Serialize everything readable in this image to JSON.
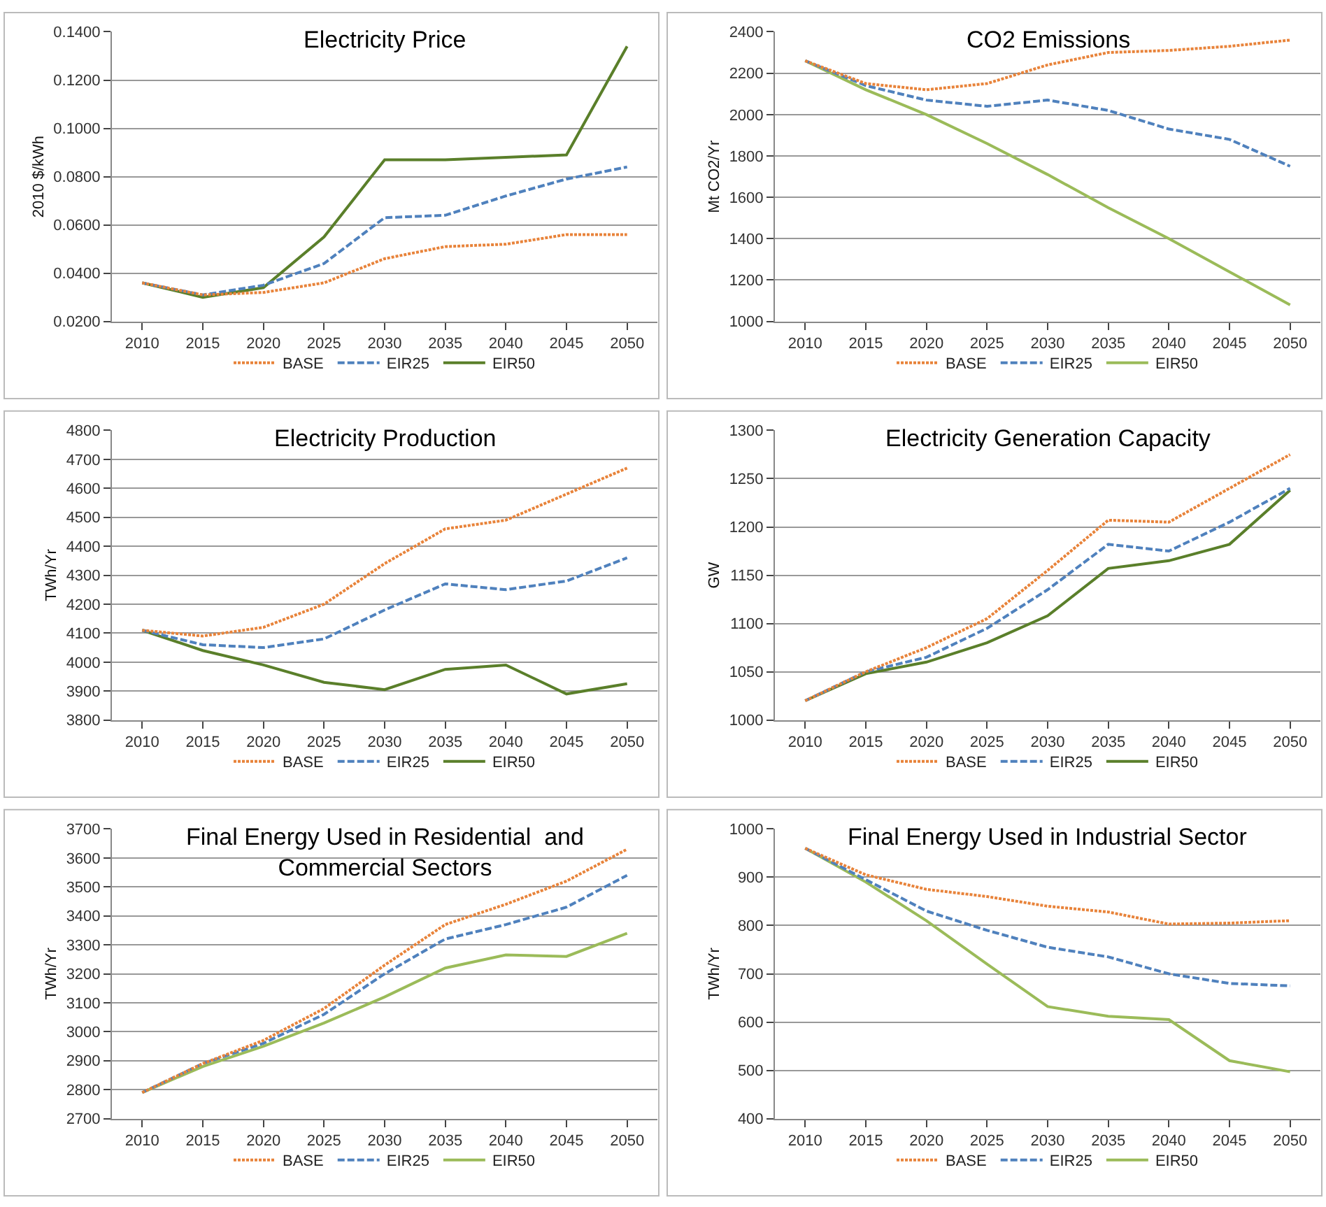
{
  "chart_data": [
    {
      "type": "line",
      "title": "Electricity Price",
      "ylabel": "2010 $/kWh",
      "categories": [
        "2010",
        "2015",
        "2020",
        "2025",
        "2030",
        "2035",
        "2040",
        "2045",
        "2050"
      ],
      "ylim": [
        0.02,
        0.14
      ],
      "yticks": [
        {
          "value": 0.02,
          "label": "0.0200"
        },
        {
          "value": 0.04,
          "label": "0.0400"
        },
        {
          "value": 0.06,
          "label": "0.0600"
        },
        {
          "value": 0.08,
          "label": "0.0800"
        },
        {
          "value": 0.1,
          "label": "0.1000"
        },
        {
          "value": 0.12,
          "label": "0.1200"
        },
        {
          "value": 0.14,
          "label": "0.1400"
        }
      ],
      "grid": "y",
      "legend": "bottom",
      "marker": "none",
      "series": [
        {
          "name": "BASE",
          "color": "#e8833a",
          "line_style": "dotted",
          "values": [
            0.036,
            0.031,
            0.032,
            0.036,
            0.046,
            0.051,
            0.052,
            0.056,
            0.056
          ]
        },
        {
          "name": "EIR25",
          "color": "#4f81bd",
          "line_style": "dashed",
          "values": [
            0.036,
            0.031,
            0.035,
            0.044,
            0.063,
            0.064,
            0.072,
            0.079,
            0.084
          ]
        },
        {
          "name": "EIR50",
          "color": "#5a7f2a",
          "line_style": "solid",
          "values": [
            0.036,
            0.03,
            0.034,
            0.055,
            0.087,
            0.087,
            0.088,
            0.089,
            0.134
          ]
        }
      ]
    },
    {
      "type": "line",
      "title": "CO2 Emissions",
      "ylabel": "Mt CO2/Yr",
      "categories": [
        "2010",
        "2015",
        "2020",
        "2025",
        "2030",
        "2035",
        "2040",
        "2045",
        "2050"
      ],
      "ylim": [
        1000,
        2400
      ],
      "yticks": [
        1000,
        1200,
        1400,
        1600,
        1800,
        2000,
        2200,
        2400
      ],
      "grid": "y",
      "legend": "bottom",
      "marker": "none",
      "series": [
        {
          "name": "BASE",
          "color": "#e8833a",
          "line_style": "dotted",
          "values": [
            2260,
            2150,
            2120,
            2150,
            2240,
            2300,
            2310,
            2330,
            2360
          ]
        },
        {
          "name": "EIR25",
          "color": "#4f81bd",
          "line_style": "dashed",
          "values": [
            2260,
            2140,
            2070,
            2040,
            2070,
            2020,
            1930,
            1880,
            1750
          ]
        },
        {
          "name": "EIR50",
          "color": "#9bbb59",
          "line_style": "solid",
          "values": [
            2260,
            2120,
            2000,
            1860,
            1710,
            1550,
            1400,
            1240,
            1080
          ]
        }
      ]
    },
    {
      "type": "line",
      "title": "Electricity Production",
      "ylabel": "TWh/Yr",
      "categories": [
        "2010",
        "2015",
        "2020",
        "2025",
        "2030",
        "2035",
        "2040",
        "2045",
        "2050"
      ],
      "ylim": [
        3800,
        4800
      ],
      "yticks": [
        3800,
        3900,
        4000,
        4100,
        4200,
        4300,
        4400,
        4500,
        4600,
        4700,
        4800
      ],
      "grid": "y",
      "legend": "bottom",
      "marker": "none",
      "series": [
        {
          "name": "BASE",
          "color": "#e8833a",
          "line_style": "dotted",
          "values": [
            4110,
            4090,
            4120,
            4200,
            4340,
            4460,
            4490,
            4580,
            4670
          ]
        },
        {
          "name": "EIR25",
          "color": "#4f81bd",
          "line_style": "dashed",
          "values": [
            4110,
            4060,
            4050,
            4080,
            4180,
            4270,
            4250,
            4280,
            4360
          ]
        },
        {
          "name": "EIR50",
          "color": "#5a7f2a",
          "line_style": "solid",
          "values": [
            4110,
            4040,
            3990,
            3930,
            3905,
            3975,
            3990,
            3890,
            3925
          ]
        }
      ]
    },
    {
      "type": "line",
      "title": "Electricity Generation Capacity",
      "ylabel": "GW",
      "categories": [
        "2010",
        "2015",
        "2020",
        "2025",
        "2030",
        "2035",
        "2040",
        "2045",
        "2050"
      ],
      "ylim": [
        1000,
        1300
      ],
      "yticks": [
        1000,
        1050,
        1100,
        1150,
        1200,
        1250,
        1300
      ],
      "grid": "y",
      "legend": "bottom",
      "marker": "none",
      "series": [
        {
          "name": "BASE",
          "color": "#e8833a",
          "line_style": "dotted",
          "values": [
            1020,
            1050,
            1075,
            1105,
            1155,
            1207,
            1205,
            1240,
            1275
          ]
        },
        {
          "name": "EIR25",
          "color": "#4f81bd",
          "line_style": "dashed",
          "values": [
            1020,
            1050,
            1065,
            1095,
            1135,
            1182,
            1175,
            1205,
            1240
          ]
        },
        {
          "name": "EIR50",
          "color": "#5a7f2a",
          "line_style": "solid",
          "values": [
            1020,
            1048,
            1060,
            1080,
            1108,
            1157,
            1165,
            1182,
            1238
          ]
        }
      ]
    },
    {
      "type": "line",
      "title": "Final Energy Used in Residential  and\nCommercial Sectors",
      "ylabel": "TWh/Yr",
      "categories": [
        "2010",
        "2015",
        "2020",
        "2025",
        "2030",
        "2035",
        "2040",
        "2045",
        "2050"
      ],
      "ylim": [
        2700,
        3700
      ],
      "yticks": [
        2700,
        2800,
        2900,
        3000,
        3100,
        3200,
        3300,
        3400,
        3500,
        3600,
        3700
      ],
      "grid": "y",
      "legend": "bottom",
      "marker": "none",
      "series": [
        {
          "name": "BASE",
          "color": "#e8833a",
          "line_style": "dotted",
          "values": [
            2790,
            2890,
            2970,
            3080,
            3230,
            3370,
            3440,
            3520,
            3630
          ]
        },
        {
          "name": "EIR25",
          "color": "#4f81bd",
          "line_style": "dashed",
          "values": [
            2790,
            2890,
            2960,
            3060,
            3200,
            3320,
            3370,
            3430,
            3540
          ]
        },
        {
          "name": "EIR50",
          "color": "#9bbb59",
          "line_style": "solid",
          "values": [
            2790,
            2880,
            2950,
            3030,
            3120,
            3220,
            3265,
            3260,
            3340
          ]
        }
      ]
    },
    {
      "type": "line",
      "title": "Final Energy Used in Industrial Sector",
      "ylabel": "TWh/Yr",
      "categories": [
        "2010",
        "2015",
        "2020",
        "2025",
        "2030",
        "2035",
        "2040",
        "2045",
        "2050"
      ],
      "ylim": [
        400,
        1000
      ],
      "yticks": [
        400,
        500,
        600,
        700,
        800,
        900,
        1000
      ],
      "grid": "y",
      "legend": "bottom",
      "marker": "none",
      "series": [
        {
          "name": "BASE",
          "color": "#e8833a",
          "line_style": "dotted",
          "values": [
            960,
            905,
            875,
            860,
            840,
            828,
            803,
            805,
            810
          ]
        },
        {
          "name": "EIR25",
          "color": "#4f81bd",
          "line_style": "dashed",
          "values": [
            960,
            895,
            830,
            790,
            755,
            735,
            700,
            680,
            675
          ]
        },
        {
          "name": "EIR50",
          "color": "#9bbb59",
          "line_style": "solid",
          "values": [
            960,
            890,
            810,
            720,
            632,
            612,
            605,
            520,
            497
          ]
        }
      ]
    }
  ]
}
